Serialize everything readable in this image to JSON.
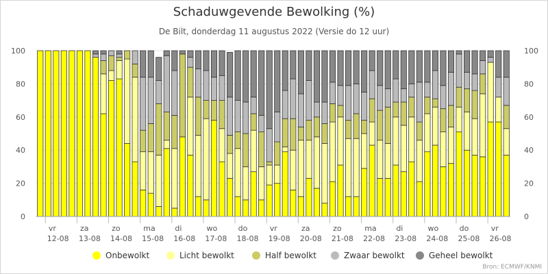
{
  "chart_data": {
    "type": "bar",
    "stacked": true,
    "title": "Schaduwgevende Bewolking (%)",
    "subtitle": "De Bilt, donderdag 11 augustus 2022 (Versie do 12 uur)",
    "credit": "Bron: ECMWF/KNMI",
    "ylim": [
      0,
      100
    ],
    "yticks": [
      0,
      20,
      40,
      60,
      80,
      100
    ],
    "x_day_labels": [
      {
        "day": "vr",
        "date": "12-08",
        "index": 0
      },
      {
        "day": "za",
        "date": "13-08",
        "index": 4
      },
      {
        "day": "zo",
        "date": "14-08",
        "index": 8
      },
      {
        "day": "ma",
        "date": "15-08",
        "index": 12
      },
      {
        "day": "di",
        "date": "16-08",
        "index": 16
      },
      {
        "day": "wo",
        "date": "17-08",
        "index": 20
      },
      {
        "day": "do",
        "date": "18-08",
        "index": 24
      },
      {
        "day": "vr",
        "date": "19-08",
        "index": 28
      },
      {
        "day": "za",
        "date": "20-08",
        "index": 32
      },
      {
        "day": "zo",
        "date": "21-08",
        "index": 36
      },
      {
        "day": "ma",
        "date": "22-08",
        "index": 40
      },
      {
        "day": "di",
        "date": "23-08",
        "index": 44
      },
      {
        "day": "wo",
        "date": "24-08",
        "index": 48
      },
      {
        "day": "do",
        "date": "25-08",
        "index": 52
      },
      {
        "day": "vr",
        "date": "26-08",
        "index": 56
      }
    ],
    "series": [
      {
        "name": "Onbewolkt",
        "color": "#ffff00",
        "values": [
          100,
          100,
          100,
          100,
          100,
          100,
          100,
          96,
          62,
          82,
          83,
          44,
          33,
          16,
          14,
          6,
          41,
          5,
          48,
          37,
          12,
          10,
          58,
          33,
          23,
          12,
          10,
          27,
          10,
          19,
          20,
          39,
          16,
          12,
          23,
          17,
          8,
          21,
          31,
          12,
          12,
          29,
          43,
          23,
          23,
          31,
          27,
          33,
          21,
          39,
          43,
          30,
          32,
          51,
          40,
          37,
          36,
          57,
          57,
          37
        ]
      },
      {
        "name": "Licht bewolkt",
        "color": "#ffff99",
        "values": [
          0,
          0,
          0,
          0,
          0,
          0,
          0,
          0,
          24,
          6,
          11,
          51,
          51,
          23,
          25,
          31,
          5,
          36,
          0,
          35,
          37,
          49,
          0,
          20,
          15,
          29,
          20,
          25,
          20,
          12,
          11,
          3,
          24,
          34,
          23,
          31,
          36,
          36,
          29,
          35,
          35,
          21,
          14,
          23,
          21,
          29,
          28,
          27,
          25,
          23,
          23,
          21,
          22,
          15,
          23,
          22,
          38,
          36,
          15,
          16
        ]
      },
      {
        "name": "Half bewolkt",
        "color": "#cccc66",
        "values": [
          0,
          0,
          0,
          0,
          0,
          0,
          0,
          0,
          8,
          9,
          2,
          5,
          8,
          13,
          17,
          31,
          17,
          20,
          50,
          18,
          23,
          11,
          12,
          17,
          11,
          10,
          20,
          10,
          21,
          2,
          14,
          17,
          19,
          8,
          12,
          12,
          12,
          11,
          7,
          11,
          15,
          8,
          14,
          18,
          22,
          9,
          14,
          12,
          11,
          10,
          5,
          14,
          13,
          12,
          14,
          17,
          12,
          0,
          0,
          14
        ]
      },
      {
        "name": "Zwaar bewolkt",
        "color": "#bbbbbb",
        "values": [
          0,
          0,
          0,
          0,
          0,
          0,
          0,
          2,
          4,
          3,
          2,
          0,
          8,
          32,
          28,
          14,
          34,
          27,
          0,
          6,
          17,
          18,
          14,
          15,
          23,
          19,
          19,
          10,
          10,
          20,
          18,
          17,
          24,
          20,
          24,
          9,
          13,
          13,
          12,
          21,
          18,
          17,
          17,
          15,
          11,
          14,
          8,
          8,
          24,
          9,
          17,
          14,
          20,
          20,
          10,
          10,
          8,
          3,
          12,
          17
        ]
      },
      {
        "name": "Geheel bewolkt",
        "color": "#888888",
        "values": [
          0,
          0,
          0,
          0,
          0,
          0,
          0,
          2,
          2,
          0,
          2,
          0,
          0,
          16,
          16,
          14,
          3,
          12,
          2,
          4,
          11,
          12,
          16,
          15,
          27,
          30,
          31,
          28,
          39,
          47,
          37,
          24,
          17,
          26,
          18,
          31,
          31,
          19,
          21,
          21,
          20,
          25,
          12,
          21,
          23,
          17,
          23,
          20,
          19,
          19,
          12,
          21,
          13,
          2,
          13,
          14,
          6,
          4,
          16,
          16
        ]
      }
    ]
  }
}
